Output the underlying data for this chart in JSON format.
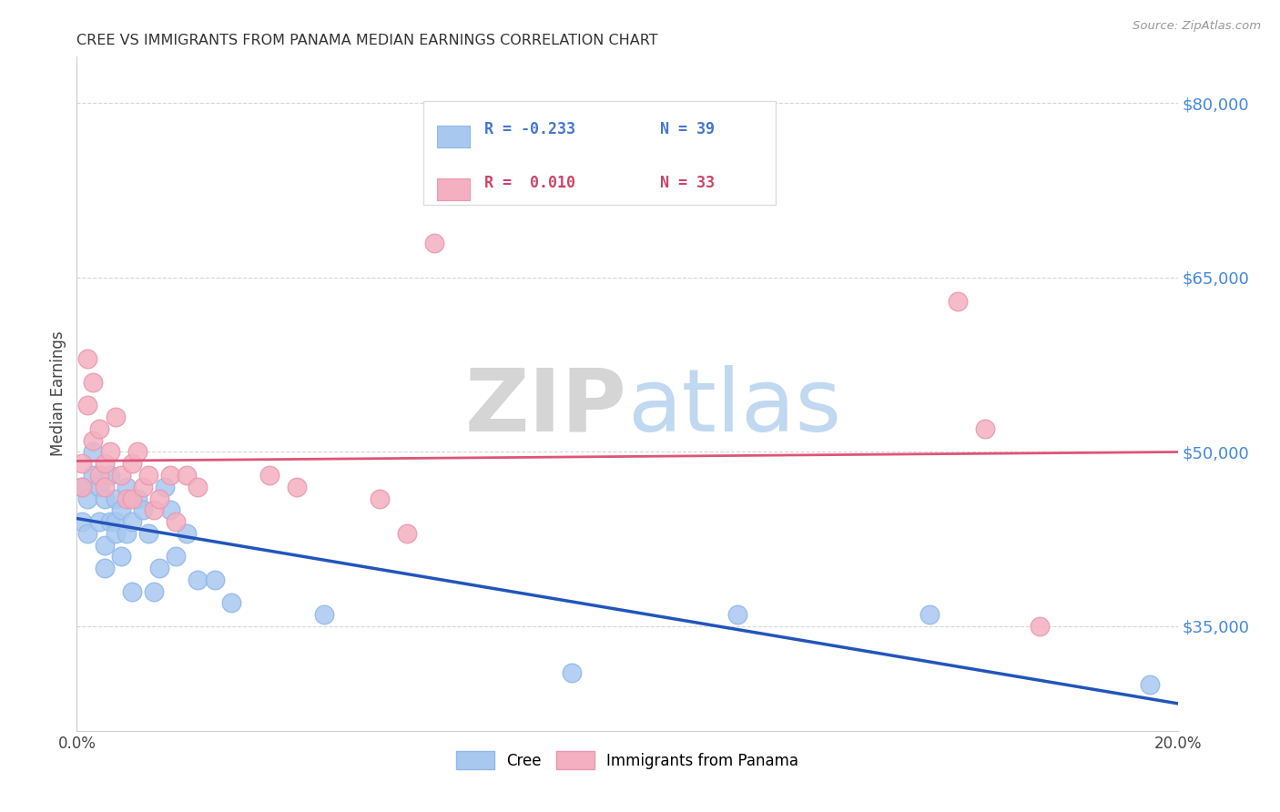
{
  "title": "CREE VS IMMIGRANTS FROM PANAMA MEDIAN EARNINGS CORRELATION CHART",
  "source": "Source: ZipAtlas.com",
  "ylabel": "Median Earnings",
  "xlim": [
    0.0,
    0.2
  ],
  "ylim": [
    26000,
    84000
  ],
  "yticks": [
    35000,
    50000,
    65000,
    80000
  ],
  "xticks": [
    0.0,
    0.05,
    0.1,
    0.15,
    0.2
  ],
  "xtick_labels": [
    "0.0%",
    "",
    "",
    "",
    "20.0%"
  ],
  "background_color": "#ffffff",
  "grid_color": "#cccccc",
  "legend_r1": "R = -0.233",
  "legend_n1": "N = 39",
  "legend_r2": "R =  0.010",
  "legend_n2": "N = 33",
  "cree_color": "#a8c8f0",
  "panama_color": "#f4b0c0",
  "cree_edge_color": "#90b8e8",
  "panama_edge_color": "#e898b0",
  "cree_line_color": "#2255bb",
  "panama_line_color": "#dd5577",
  "cree_color_legend": "#a8c8f0",
  "panama_color_legend": "#f4b0c0",
  "legend_text_blue": "#4477cc",
  "legend_text_pink": "#cc4466",
  "watermark_zip": "#cccccc",
  "watermark_atlas": "#aaccee",
  "cree_x": [
    0.001,
    0.001,
    0.002,
    0.002,
    0.003,
    0.003,
    0.004,
    0.004,
    0.005,
    0.005,
    0.005,
    0.006,
    0.006,
    0.007,
    0.007,
    0.007,
    0.008,
    0.008,
    0.009,
    0.009,
    0.01,
    0.01,
    0.011,
    0.012,
    0.013,
    0.014,
    0.015,
    0.016,
    0.017,
    0.018,
    0.02,
    0.022,
    0.025,
    0.028,
    0.045,
    0.09,
    0.12,
    0.155,
    0.195
  ],
  "cree_y": [
    47000,
    44000,
    46000,
    43000,
    50000,
    48000,
    47000,
    44000,
    42000,
    46000,
    40000,
    48000,
    44000,
    46000,
    44000,
    43000,
    45000,
    41000,
    47000,
    43000,
    44000,
    38000,
    46000,
    45000,
    43000,
    38000,
    40000,
    47000,
    45000,
    41000,
    43000,
    39000,
    39000,
    37000,
    36000,
    31000,
    36000,
    36000,
    30000
  ],
  "panama_x": [
    0.001,
    0.001,
    0.002,
    0.002,
    0.003,
    0.003,
    0.004,
    0.004,
    0.005,
    0.005,
    0.006,
    0.007,
    0.008,
    0.009,
    0.01,
    0.01,
    0.011,
    0.012,
    0.013,
    0.014,
    0.015,
    0.017,
    0.018,
    0.02,
    0.022,
    0.035,
    0.04,
    0.055,
    0.06,
    0.065,
    0.16,
    0.165,
    0.175
  ],
  "panama_y": [
    49000,
    47000,
    58000,
    54000,
    56000,
    51000,
    48000,
    52000,
    49000,
    47000,
    50000,
    53000,
    48000,
    46000,
    49000,
    46000,
    50000,
    47000,
    48000,
    45000,
    46000,
    48000,
    44000,
    48000,
    47000,
    48000,
    47000,
    46000,
    43000,
    68000,
    63000,
    52000,
    35000
  ]
}
